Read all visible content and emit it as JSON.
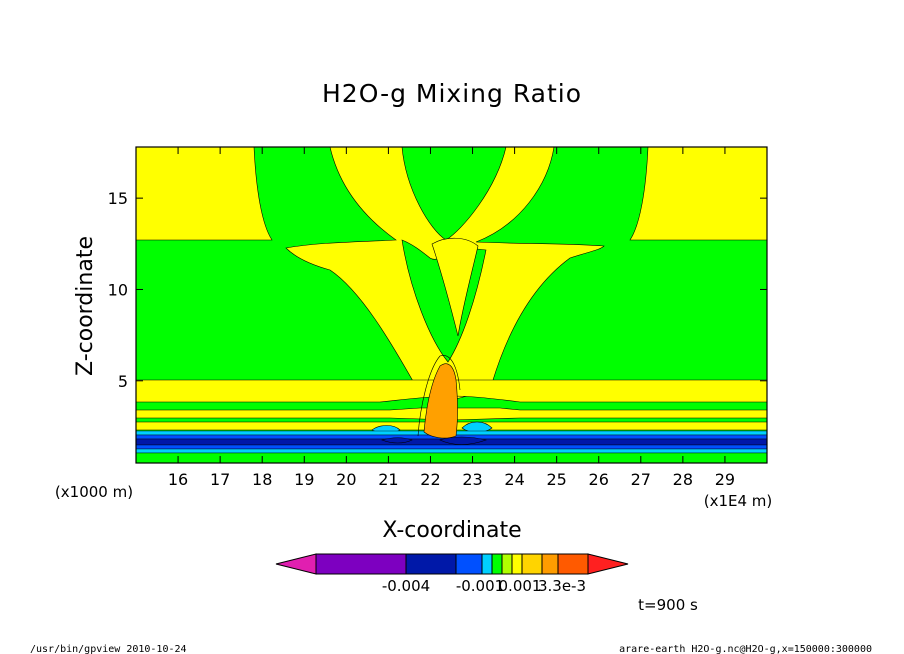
{
  "chart_data": {
    "type": "contour",
    "title": "H2O-g Mixing Ratio",
    "xlabel": "X-coordinate",
    "ylabel": "Z-coordinate",
    "x_unit_label": "(x1E4 m)",
    "y_unit_label": "(x1000 m)",
    "xlim": [
      15.0,
      30.0
    ],
    "ylim": [
      0.5,
      17.8
    ],
    "x_ticks": [
      16,
      17,
      18,
      19,
      20,
      21,
      22,
      23,
      24,
      25,
      26,
      27,
      28,
      29
    ],
    "x_tick_labels": [
      "16",
      "17",
      "18",
      "19",
      "20",
      "21",
      "22",
      "23",
      "24",
      "25",
      "26",
      "27",
      "28",
      "29"
    ],
    "y_ticks": [
      5,
      10,
      15
    ],
    "y_tick_labels": [
      "5",
      "10",
      "15"
    ],
    "colorbar": {
      "colors": [
        "#e01fb0",
        "#7d00c0",
        "#0018a8",
        "#0050ff",
        "#00d0ff",
        "#00ff00",
        "#b0ff00",
        "#ffff00",
        "#ffd400",
        "#ff9c00",
        "#ff5a00",
        "#ff2020"
      ],
      "tick_labels": [
        "-0.004",
        "-0.001",
        "0.001",
        "3.3e-3"
      ]
    },
    "regions": [
      {
        "name": "upper-left-yellow",
        "level": "positive-small",
        "color": "#ffff00"
      },
      {
        "name": "upper-right-yellow",
        "level": "positive-small",
        "color": "#ffff00"
      },
      {
        "name": "central-v-plume",
        "level": "positive-small",
        "color": "#ffff00"
      },
      {
        "name": "low-level-layers",
        "level": "positive-small",
        "color": "#ffff00"
      },
      {
        "name": "updraft-core",
        "level": "0.001",
        "color": "#ffa000"
      },
      {
        "name": "boundary-layer-negative",
        "level": "-0.004",
        "color": "#0018a8"
      }
    ]
  },
  "annotations": {
    "time": "t=900 s",
    "footer_left": "/usr/bin/gpview   2010-10-24",
    "footer_right": "arare-earth_H2O-g.nc@H2O-g,x=150000:300000"
  }
}
